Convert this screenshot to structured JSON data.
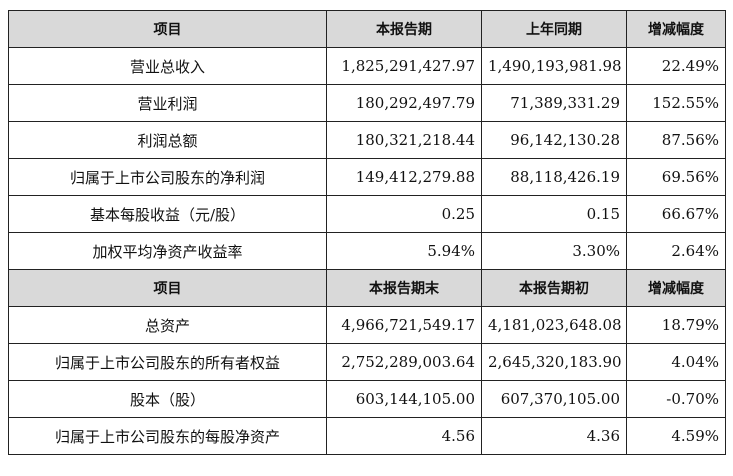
{
  "section1": {
    "headers": [
      "项目",
      "本报告期",
      "上年同期",
      "增减幅度"
    ],
    "rows": [
      [
        "营业总收入",
        "1,825,291,427.97",
        "1,490,193,981.98",
        "22.49%"
      ],
      [
        "营业利润",
        "180,292,497.79",
        "71,389,331.29",
        "152.55%"
      ],
      [
        "利润总额",
        "180,321,218.44",
        "96,142,130.28",
        "87.56%"
      ],
      [
        "归属于上市公司股东的净利润",
        "149,412,279.88",
        "88,118,426.19",
        "69.56%"
      ],
      [
        "基本每股收益（元/股）",
        "0.25",
        "0.15",
        "66.67%"
      ],
      [
        "加权平均净资产收益率",
        "5.94%",
        "3.30%",
        "2.64%"
      ]
    ]
  },
  "section2": {
    "headers": [
      "项目",
      "本报告期末",
      "本报告期初",
      "增减幅度"
    ],
    "rows": [
      [
        "总资产",
        "4,966,721,549.17",
        "4,181,023,648.08",
        "18.79%"
      ],
      [
        "归属于上市公司股东的所有者权益",
        "2,752,289,003.64",
        "2,645,320,183.90",
        "4.04%"
      ],
      [
        "股本（股）",
        "603,144,105.00",
        "607,370,105.00",
        "-0.70%"
      ],
      [
        "归属于上市公司股东的每股净资产",
        "4.56",
        "4.36",
        "4.59%"
      ]
    ]
  }
}
